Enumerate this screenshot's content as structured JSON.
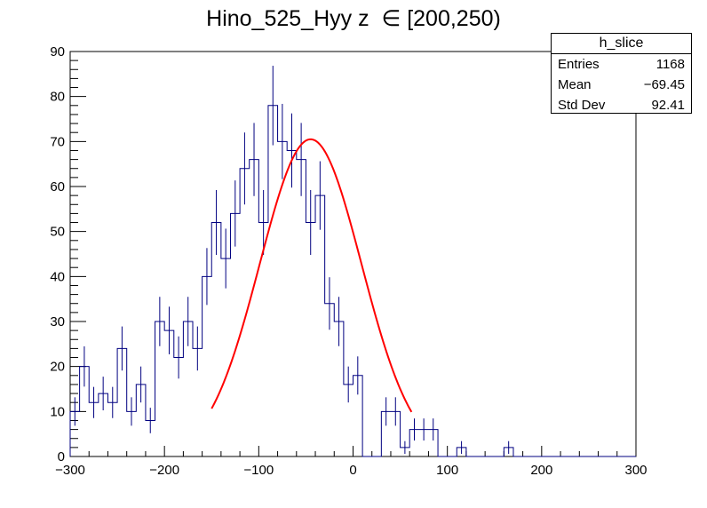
{
  "chart_data": {
    "type": "histogram",
    "title": "Hino_525_Hyy z  ∈ [200,250)",
    "xlim": [
      -300,
      300
    ],
    "ylim": [
      0,
      90
    ],
    "bin_width": 10,
    "x_ticks": [
      -300,
      -200,
      -100,
      0,
      100,
      200,
      300
    ],
    "y_ticks": [
      0,
      10,
      20,
      30,
      40,
      50,
      60,
      70,
      80,
      90
    ],
    "histogram": {
      "name": "h_slice",
      "color": "#000080",
      "bin_low_edges": [
        -300,
        -290,
        -280,
        -270,
        -260,
        -250,
        -240,
        -230,
        -220,
        -210,
        -200,
        -190,
        -180,
        -170,
        -160,
        -150,
        -140,
        -130,
        -120,
        -110,
        -100,
        -90,
        -80,
        -70,
        -60,
        -50,
        -40,
        -30,
        -20,
        -10,
        0,
        10,
        20,
        30,
        40,
        50,
        60,
        70,
        80,
        90,
        100,
        110,
        120,
        130,
        140,
        150,
        160,
        170,
        180,
        190,
        200,
        210,
        220,
        230,
        240,
        250,
        260,
        270,
        280,
        290
      ],
      "counts": [
        10,
        20,
        12,
        14,
        12,
        24,
        10,
        16,
        8,
        30,
        28,
        22,
        30,
        24,
        40,
        52,
        44,
        54,
        64,
        66,
        52,
        78,
        70,
        68,
        66,
        52,
        58,
        34,
        30,
        16,
        18,
        0,
        0,
        10,
        10,
        2,
        6,
        6,
        6,
        0,
        0,
        2,
        0,
        0,
        0,
        0,
        2,
        0,
        0,
        0,
        0,
        0,
        0,
        0,
        0,
        0,
        0,
        0,
        0,
        0
      ]
    },
    "fit": {
      "color": "#ff0000",
      "x_range": [
        -150,
        62
      ],
      "amplitude": 70.5,
      "mean": -45,
      "sigma": 54
    },
    "stats_box": {
      "title": "h_slice",
      "rows": [
        {
          "label": "Entries",
          "value": "1168"
        },
        {
          "label": "Mean",
          "value": "−69.45"
        },
        {
          "label": "Std Dev",
          "value": "92.41"
        }
      ]
    }
  }
}
